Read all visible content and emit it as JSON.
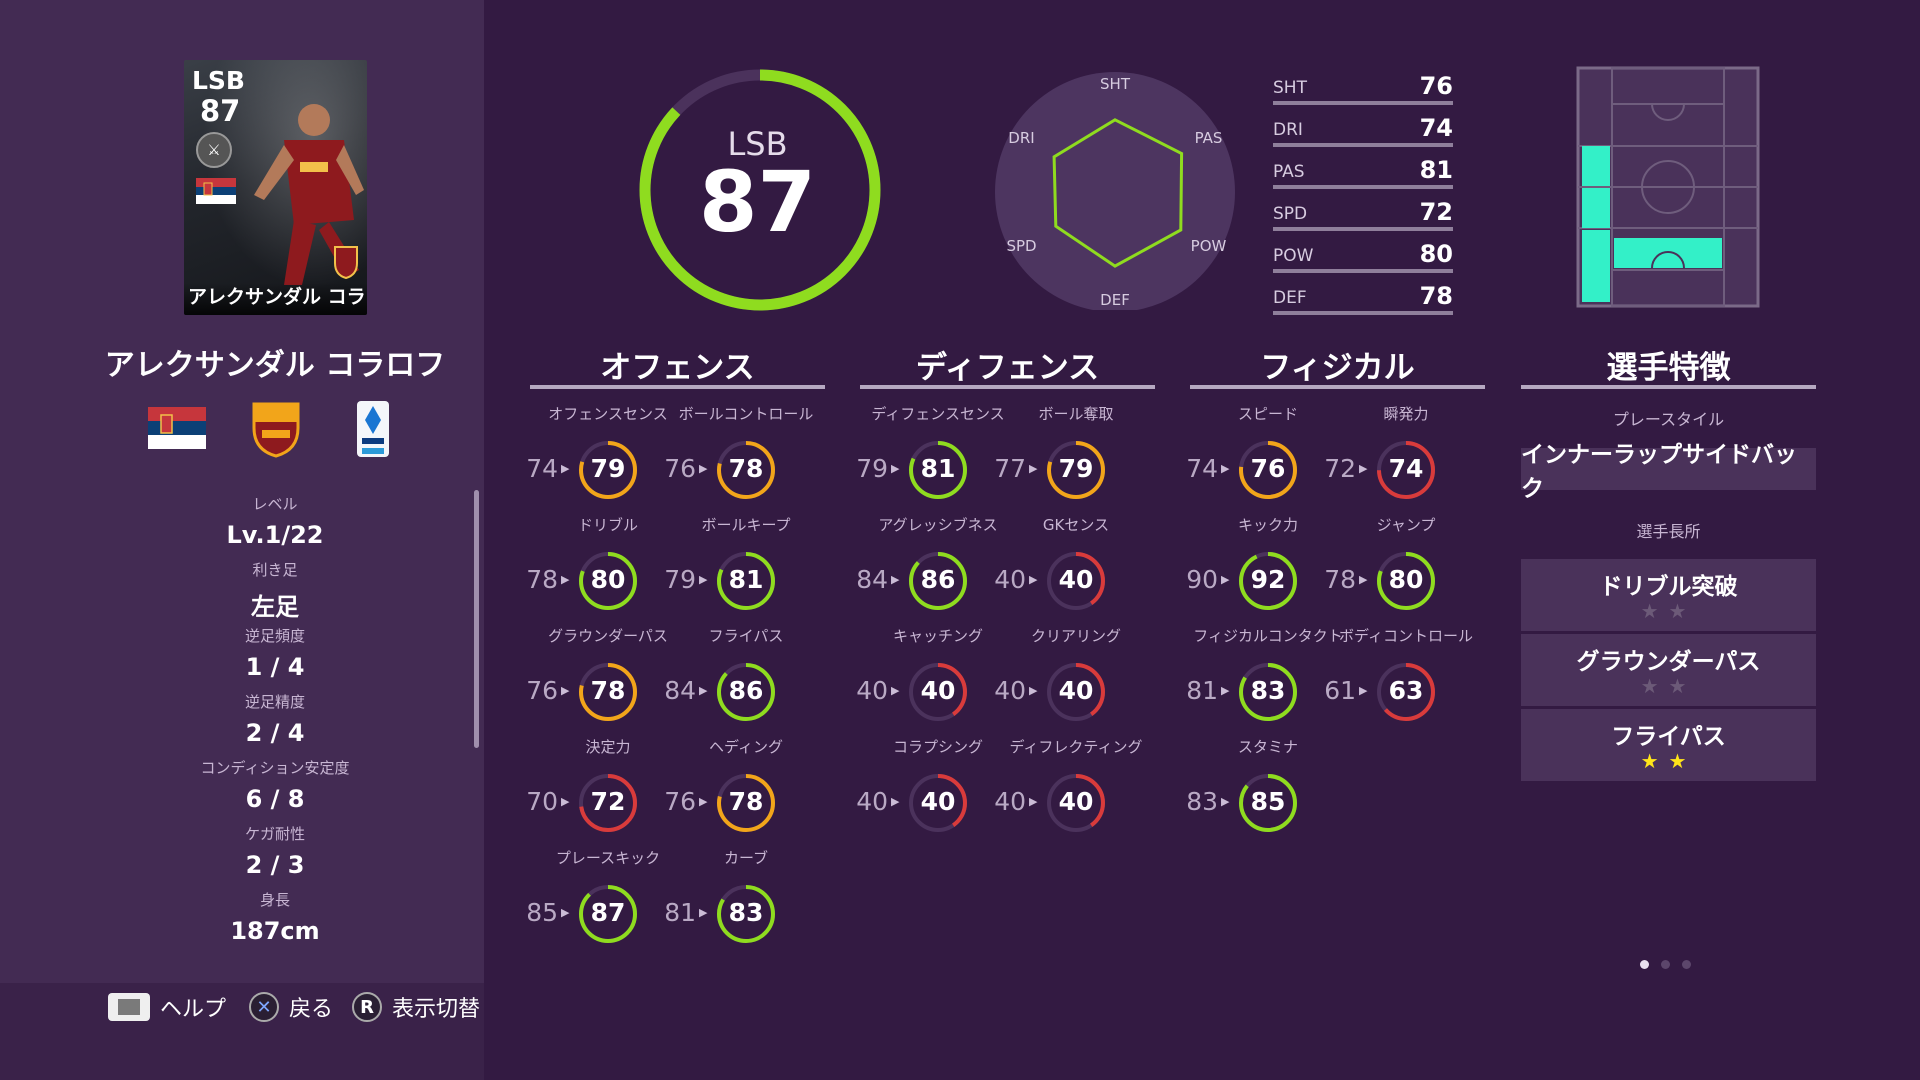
{
  "card": {
    "position": "LSB",
    "rating": "87",
    "name": "アレクサンダル コラロフ"
  },
  "player": {
    "name": "アレクサンダル コラロフ"
  },
  "info": [
    {
      "label": "レベル",
      "value": "Lv.1/22"
    },
    {
      "label": "利き足",
      "value": "左足"
    },
    {
      "label": "逆足頻度",
      "value": "1 / 4"
    },
    {
      "label": "逆足精度",
      "value": "2 / 4"
    },
    {
      "label": "コンディション安定度",
      "value": "6 / 8"
    },
    {
      "label": "ケガ耐性",
      "value": "2 / 3"
    },
    {
      "label": "身長",
      "value": "187cm"
    }
  ],
  "overall": {
    "position": "LSB",
    "value": "87",
    "ring_fraction": 0.87
  },
  "radar": {
    "labels": [
      "SHT",
      "PAS",
      "POW",
      "DEF",
      "SPD",
      "DRI"
    ],
    "values": [
      76,
      81,
      80,
      78,
      72,
      74
    ]
  },
  "stats": [
    {
      "label": "SHT",
      "value": "76"
    },
    {
      "label": "DRI",
      "value": "74"
    },
    {
      "label": "PAS",
      "value": "81"
    },
    {
      "label": "SPD",
      "value": "72"
    },
    {
      "label": "POW",
      "value": "80"
    },
    {
      "label": "DEF",
      "value": "78"
    }
  ],
  "columns": {
    "offense": {
      "title": "オフェンス",
      "skills": [
        {
          "name": "オフェンスセンス",
          "base": "74",
          "value": "79"
        },
        {
          "name": "ボールコントロール",
          "base": "76",
          "value": "78"
        },
        {
          "name": "ドリブル",
          "base": "78",
          "value": "80"
        },
        {
          "name": "ボールキープ",
          "base": "79",
          "value": "81"
        },
        {
          "name": "グラウンダーパス",
          "base": "76",
          "value": "78"
        },
        {
          "name": "フライパス",
          "base": "84",
          "value": "86"
        },
        {
          "name": "決定力",
          "base": "70",
          "value": "72"
        },
        {
          "name": "ヘディング",
          "base": "76",
          "value": "78"
        },
        {
          "name": "プレースキック",
          "base": "85",
          "value": "87"
        },
        {
          "name": "カーブ",
          "base": "81",
          "value": "83"
        }
      ]
    },
    "defense": {
      "title": "ディフェンス",
      "skills": [
        {
          "name": "ディフェンスセンス",
          "base": "79",
          "value": "81"
        },
        {
          "name": "ボール奪取",
          "base": "77",
          "value": "79"
        },
        {
          "name": "アグレッシブネス",
          "base": "84",
          "value": "86"
        },
        {
          "name": "GKセンス",
          "base": "40",
          "value": "40"
        },
        {
          "name": "キャッチング",
          "base": "40",
          "value": "40"
        },
        {
          "name": "クリアリング",
          "base": "40",
          "value": "40"
        },
        {
          "name": "コラプシング",
          "base": "40",
          "value": "40"
        },
        {
          "name": "ディフレクティング",
          "base": "40",
          "value": "40"
        }
      ]
    },
    "physical": {
      "title": "フィジカル",
      "skills": [
        {
          "name": "スピード",
          "base": "74",
          "value": "76"
        },
        {
          "name": "瞬発力",
          "base": "72",
          "value": "74"
        },
        {
          "name": "キック力",
          "base": "90",
          "value": "92"
        },
        {
          "name": "ジャンプ",
          "base": "78",
          "value": "80"
        },
        {
          "name": "フィジカルコンタクト",
          "base": "81",
          "value": "83"
        },
        {
          "name": "ボディコントロール",
          "base": "61",
          "value": "63"
        },
        {
          "name": "スタミナ",
          "base": "83",
          "value": "85"
        }
      ]
    }
  },
  "traits": {
    "title": "選手特徴",
    "playstyle_label": "プレースタイル",
    "playstyle": "インナーラップサイドバック",
    "abilities_label": "選手長所",
    "abilities": [
      {
        "name": "ドリブル突破",
        "stars": 0
      },
      {
        "name": "グラウンダーパス",
        "stars": 0
      },
      {
        "name": "フライパス",
        "stars": 2
      }
    ]
  },
  "help": {
    "help": "ヘルプ",
    "back": "戻る",
    "back_button": "✕",
    "toggle": "表示切替",
    "toggle_button": "R"
  },
  "colors": {
    "green": "#8fdc1f",
    "orange": "#f2a51a",
    "red": "#d93b3b",
    "cyan": "#33f0c8",
    "bg": "#331a42",
    "panel": "#432b53"
  }
}
